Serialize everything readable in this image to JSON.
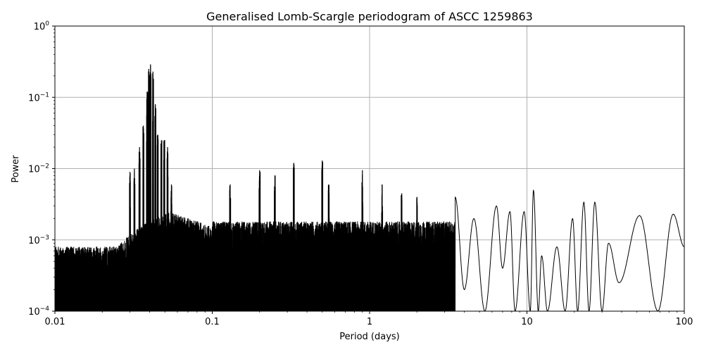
{
  "chart_data": {
    "type": "line",
    "title": "Generalised Lomb-Scargle periodogram of ASCC 1259863",
    "xlabel": "Period (days)",
    "ylabel": "Power",
    "xscale": "log",
    "yscale": "log",
    "xlim": [
      0.01,
      100
    ],
    "ylim": [
      0.0001,
      1
    ],
    "grid": true,
    "x_ticks": [
      {
        "value": 0.01,
        "label": "0.01"
      },
      {
        "value": 0.1,
        "label": "0.1"
      },
      {
        "value": 1,
        "label": "1"
      },
      {
        "value": 10,
        "label": "10"
      },
      {
        "value": 100,
        "label": "100"
      }
    ],
    "y_ticks": [
      {
        "value": 0.0001,
        "base": "10",
        "exp": "−4"
      },
      {
        "value": 0.001,
        "base": "10",
        "exp": "−3"
      },
      {
        "value": 0.01,
        "base": "10",
        "exp": "−2"
      },
      {
        "value": 0.1,
        "base": "10",
        "exp": "−1"
      },
      {
        "value": 1,
        "base": "10",
        "exp": "0"
      }
    ],
    "line_color": "#000000",
    "peaks": [
      {
        "x": 0.0345,
        "y": 0.02
      },
      {
        "x": 0.0365,
        "y": 0.04
      },
      {
        "x": 0.0385,
        "y": 0.12
      },
      {
        "x": 0.0395,
        "y": 0.25
      },
      {
        "x": 0.0405,
        "y": 0.29
      },
      {
        "x": 0.042,
        "y": 0.23
      },
      {
        "x": 0.0435,
        "y": 0.08
      },
      {
        "x": 0.045,
        "y": 0.03
      },
      {
        "x": 0.0475,
        "y": 0.025
      },
      {
        "x": 0.0495,
        "y": 0.025
      },
      {
        "x": 0.052,
        "y": 0.02
      },
      {
        "x": 0.055,
        "y": 0.006
      },
      {
        "x": 0.03,
        "y": 0.009
      },
      {
        "x": 0.032,
        "y": 0.01
      },
      {
        "x": 0.13,
        "y": 0.006
      },
      {
        "x": 0.2,
        "y": 0.0095
      },
      {
        "x": 0.25,
        "y": 0.008
      },
      {
        "x": 0.33,
        "y": 0.012
      },
      {
        "x": 0.5,
        "y": 0.013
      },
      {
        "x": 0.55,
        "y": 0.006
      },
      {
        "x": 0.9,
        "y": 0.0095
      },
      {
        "x": 1.2,
        "y": 0.006
      },
      {
        "x": 1.6,
        "y": 0.0045
      },
      {
        "x": 2.0,
        "y": 0.004
      }
    ],
    "smooth_points": [
      [
        3.5,
        0.004
      ],
      [
        4.0,
        0.0002
      ],
      [
        4.6,
        0.002
      ],
      [
        5.4,
        0.0001
      ],
      [
        6.4,
        0.003
      ],
      [
        7.0,
        0.0004
      ],
      [
        7.8,
        0.0025
      ],
      [
        8.4,
        0.0001
      ],
      [
        9.6,
        0.0025
      ],
      [
        10.5,
        0.0001
      ],
      [
        11.0,
        0.005
      ],
      [
        11.8,
        0.0001
      ],
      [
        12.4,
        0.0006
      ],
      [
        13.5,
        0.0001
      ],
      [
        15.5,
        0.0008
      ],
      [
        17.5,
        0.0001
      ],
      [
        19.5,
        0.002
      ],
      [
        21.0,
        0.0001
      ],
      [
        23.0,
        0.0034
      ],
      [
        24.8,
        0.0001
      ],
      [
        27.0,
        0.0034
      ],
      [
        30.0,
        0.0001
      ],
      [
        33.0,
        0.0009
      ],
      [
        38.5,
        0.00025
      ],
      [
        52.0,
        0.0022
      ],
      [
        68.0,
        0.0001
      ],
      [
        85.0,
        0.0023
      ],
      [
        100.0,
        0.0008
      ]
    ]
  }
}
